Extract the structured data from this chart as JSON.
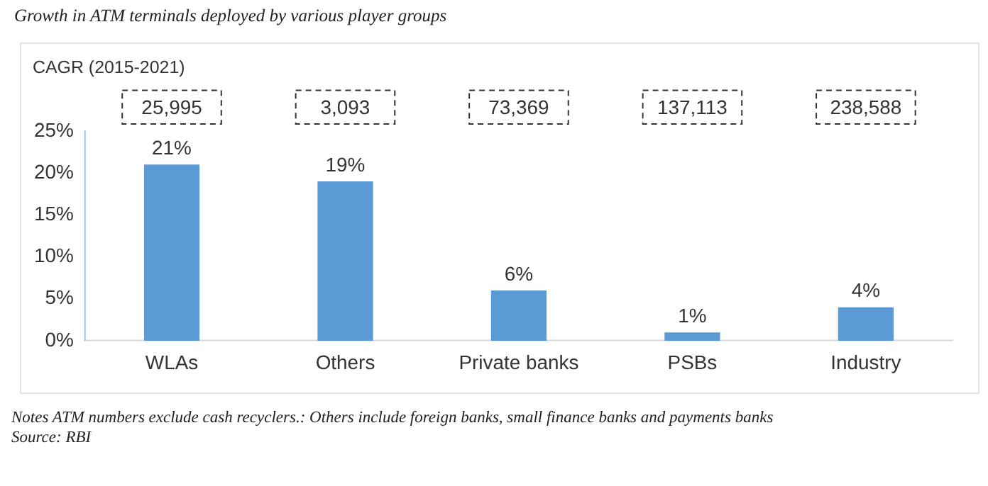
{
  "chart_data": {
    "type": "bar",
    "title": "Growth in ATM terminals deployed by various player groups",
    "ylabel": "CAGR (2015-2021)",
    "categories": [
      "WLAs",
      "Others",
      "Private banks",
      "PSBs",
      "Industry"
    ],
    "values": [
      21,
      19,
      6,
      1,
      4
    ],
    "color": "#5b9bd5",
    "value_labels": [
      "21%",
      "19%",
      "6%",
      "1%",
      "4%"
    ],
    "ylim": [
      0,
      25
    ],
    "yticks": [
      {
        "value": 0,
        "label": "0%"
      },
      {
        "value": 5,
        "label": "5%"
      },
      {
        "value": 10,
        "label": "10%"
      },
      {
        "value": 15,
        "label": "15%"
      },
      {
        "value": 20,
        "label": "20%"
      },
      {
        "value": 25,
        "label": "25%"
      }
    ],
    "grid": false,
    "legend": false,
    "annotations": [
      "25,995",
      "3,093",
      "73,369",
      "137,113",
      "238,588",
      "Notes ATM numbers exclude cash recyclers.: Others include foreign banks, small finance banks and payments banks",
      "Source: RBI"
    ]
  }
}
